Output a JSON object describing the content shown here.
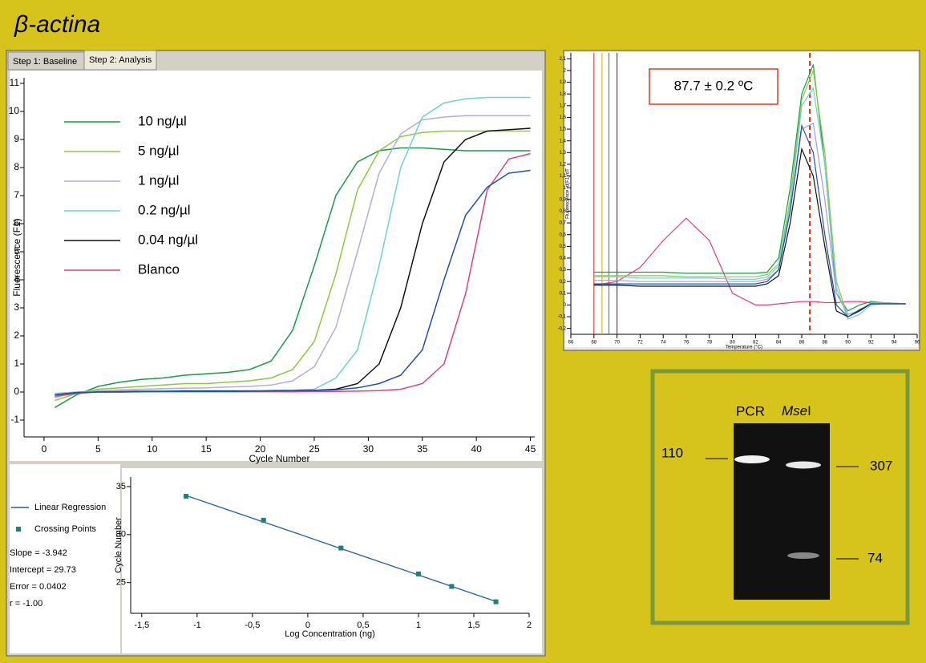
{
  "title": "β-actina",
  "tabs": [
    "Step 1: Baseline",
    "Step 2: Analysis"
  ],
  "gel": {
    "lanes": [
      {
        "label": "PCR"
      },
      {
        "italic": "Mse",
        "plain": "I"
      }
    ],
    "sizes": [
      110,
      307,
      74
    ]
  },
  "chart_data": [
    {
      "type": "line",
      "x_label": "Cycle Number",
      "y_label": "Fluorescence (F1)",
      "xlim": [
        -1.85,
        45.4
      ],
      "ylim": [
        -1.6,
        11.2
      ],
      "xticks": [
        0,
        5,
        10,
        15,
        20,
        25,
        30,
        35,
        40,
        45
      ],
      "yticks": [
        -1,
        0,
        1,
        2,
        3,
        4,
        5,
        6,
        7,
        8,
        9,
        10,
        11
      ],
      "grid": false,
      "legend": "upper left",
      "x": [
        1,
        3,
        5,
        7,
        9,
        11,
        13,
        15,
        17,
        19,
        21,
        23,
        25,
        27,
        29,
        31,
        33,
        35,
        37,
        39,
        41,
        43,
        45
      ],
      "series": [
        {
          "name": "10 ng/µl",
          "color": "#1a9a4a",
          "values": [
            -0.55,
            -0.1,
            0.2,
            0.35,
            0.45,
            0.5,
            0.6,
            0.65,
            0.7,
            0.8,
            1.1,
            2.2,
            4.5,
            7.0,
            8.2,
            8.6,
            8.7,
            8.7,
            8.65,
            8.6,
            8.6,
            8.6,
            8.6
          ]
        },
        {
          "name": "5 ng/µl",
          "color": "#8cc840",
          "values": [
            -0.3,
            -0.05,
            0.1,
            0.15,
            0.2,
            0.25,
            0.3,
            0.3,
            0.35,
            0.4,
            0.5,
            0.8,
            1.8,
            4.2,
            7.2,
            8.6,
            9.1,
            9.25,
            9.3,
            9.3,
            9.3,
            9.3,
            9.3
          ]
        },
        {
          "name": "1 ng/µl",
          "color": "#b4acdc",
          "values": [
            -0.2,
            0.0,
            0.05,
            0.08,
            0.1,
            0.12,
            0.14,
            0.15,
            0.18,
            0.2,
            0.25,
            0.4,
            0.9,
            2.3,
            5.0,
            7.8,
            9.2,
            9.7,
            9.8,
            9.85,
            9.85,
            9.85,
            9.85
          ]
        },
        {
          "name": "0.2 ng/µl",
          "color": "#6dd0d0",
          "values": [
            -0.05,
            0.0,
            0.02,
            0.03,
            0.04,
            0.05,
            0.05,
            0.05,
            0.05,
            0.05,
            0.06,
            0.07,
            0.1,
            0.5,
            1.5,
            4.5,
            8.0,
            9.8,
            10.3,
            10.45,
            10.5,
            10.5,
            10.5
          ]
        },
        {
          "name": "0.04 ng/µl",
          "color": "#111111",
          "values": [
            -0.1,
            -0.02,
            0.0,
            0.01,
            0.02,
            0.02,
            0.03,
            0.03,
            0.03,
            0.03,
            0.04,
            0.05,
            0.06,
            0.1,
            0.3,
            1.0,
            3.0,
            6.0,
            8.2,
            9.0,
            9.3,
            9.35,
            9.4
          ]
        },
        {
          "name": "Blanco",
          "color": "#e0407a",
          "values": [
            -0.15,
            -0.05,
            0.0,
            0.0,
            0.01,
            0.01,
            0.01,
            0.01,
            0.01,
            0.01,
            0.01,
            0.01,
            0.02,
            0.02,
            0.03,
            0.05,
            0.1,
            0.3,
            1.0,
            3.5,
            7.2,
            8.3,
            8.5
          ]
        },
        {
          "color": "#2050b0",
          "values": [
            -0.1,
            -0.02,
            0.0,
            0.0,
            0.01,
            0.02,
            0.02,
            0.02,
            0.02,
            0.03,
            0.04,
            0.05,
            0.06,
            0.08,
            0.15,
            0.3,
            0.6,
            1.5,
            4.0,
            6.3,
            7.3,
            7.8,
            7.9
          ]
        }
      ]
    },
    {
      "type": "line",
      "x_label": "Temperature (°C)",
      "y_label": "Fluorescence -d(F1)/dT",
      "annotation": "87.7 ± 0.2 ºC",
      "xlim": [
        66,
        96
      ],
      "ylim": [
        -0.25,
        2.15
      ],
      "xticks": [
        66,
        68,
        70,
        72,
        74,
        76,
        78,
        80,
        82,
        84,
        86,
        88,
        90,
        92,
        94,
        96
      ],
      "yticks": [
        {
          "value": -0.2,
          "label": "-0,2"
        },
        {
          "value": -0.1,
          "label": "-0,1"
        },
        0,
        {
          "value": 0.1,
          "label": "0,1"
        },
        {
          "value": 0.2,
          "label": "0,2"
        },
        {
          "value": 0.3,
          "label": "0,3"
        },
        {
          "value": 0.4,
          "label": "0,4"
        },
        {
          "value": 0.5,
          "label": "0,5"
        },
        {
          "value": 0.6,
          "label": "0,6"
        },
        {
          "value": 0.7,
          "label": "0,7"
        },
        {
          "value": 0.8,
          "label": "0,8"
        },
        {
          "value": 0.9,
          "label": "0,9"
        },
        1,
        {
          "value": 1.1,
          "label": "1,1"
        },
        {
          "value": 1.2,
          "label": "1,2"
        },
        {
          "value": 1.3,
          "label": "1,3"
        },
        {
          "value": 1.4,
          "label": "1,4"
        },
        {
          "value": 1.5,
          "label": "1,5"
        },
        {
          "value": 1.6,
          "label": "1,6"
        },
        {
          "value": 1.7,
          "label": "1,7"
        },
        {
          "value": 1.8,
          "label": "1,8"
        },
        {
          "value": 1.9,
          "label": "1,9"
        },
        2,
        {
          "value": 2.1,
          "label": "2,1"
        }
      ],
      "grid": false,
      "vlines": [
        {
          "x": 68,
          "color": "#e04040"
        },
        {
          "x": 68.7,
          "color": "#e0b030"
        },
        {
          "x": 69.3,
          "color": "#40a040"
        },
        {
          "x": 70,
          "color": "#4040c0"
        },
        {
          "x": 86.7,
          "color": "#e03020",
          "dashed": true
        }
      ],
      "x": [
        68,
        70,
        72,
        74,
        76,
        78,
        80,
        82,
        83,
        84,
        85,
        86,
        87,
        88,
        89,
        90,
        91,
        92,
        93,
        95
      ],
      "series": [
        {
          "color": "#e0407a",
          "values": [
            0.17,
            0.2,
            0.32,
            0.55,
            0.74,
            0.55,
            0.1,
            0.0,
            0.0,
            0.01,
            0.02,
            0.03,
            0.03,
            0.02,
            0.02,
            0.03,
            0.03,
            0.02,
            0.02,
            0.01
          ]
        },
        {
          "color": "#1a9a4a",
          "values": [
            0.28,
            0.28,
            0.28,
            0.28,
            0.27,
            0.27,
            0.27,
            0.27,
            0.28,
            0.4,
            1.0,
            1.8,
            2.05,
            1.2,
            0.1,
            -0.05,
            0.0,
            0.03,
            0.02,
            0.01
          ]
        },
        {
          "color": "#8cc840",
          "values": [
            0.25,
            0.25,
            0.25,
            0.25,
            0.24,
            0.24,
            0.24,
            0.24,
            0.26,
            0.35,
            0.9,
            1.75,
            2.0,
            1.3,
            0.2,
            -0.1,
            -0.05,
            0.02,
            0.02,
            0.01
          ]
        },
        {
          "color": "#a89ad8",
          "values": [
            0.21,
            0.21,
            0.2,
            0.2,
            0.2,
            0.2,
            0.2,
            0.2,
            0.22,
            0.3,
            0.8,
            1.5,
            1.55,
            0.9,
            0.1,
            -0.08,
            -0.05,
            0.02,
            0.02,
            0.01
          ]
        },
        {
          "color": "#6dd0d0",
          "values": [
            0.24,
            0.24,
            0.23,
            0.23,
            0.23,
            0.23,
            0.22,
            0.22,
            0.24,
            0.33,
            0.85,
            1.7,
            1.85,
            1.2,
            0.15,
            -0.12,
            -0.08,
            0.0,
            0.01,
            0.01
          ]
        },
        {
          "color": "#111111",
          "values": [
            0.17,
            0.17,
            0.16,
            0.16,
            0.16,
            0.16,
            0.16,
            0.16,
            0.18,
            0.25,
            0.7,
            1.33,
            1.1,
            0.5,
            -0.05,
            -0.1,
            -0.05,
            0.01,
            0.01,
            0.01
          ]
        },
        {
          "color": "#2050b0",
          "values": [
            0.18,
            0.18,
            0.18,
            0.18,
            0.18,
            0.18,
            0.18,
            0.18,
            0.2,
            0.3,
            0.8,
            1.53,
            1.3,
            0.6,
            0.0,
            -0.1,
            -0.04,
            0.01,
            0.01,
            0.01
          ]
        }
      ]
    },
    {
      "type": "scatter",
      "x_label": "Log Concentration (ng)",
      "y_label": "Cycle Number",
      "xlim": [
        -1.6,
        2.0
      ],
      "ylim": [
        21.8,
        36
      ],
      "xticks": [
        {
          "value": -1.5,
          "label": "-1,5"
        },
        -1,
        {
          "value": -0.5,
          "label": "-0,5"
        },
        0,
        {
          "value": 0.5,
          "label": "0,5"
        },
        1,
        {
          "value": 1.5,
          "label": "1,5"
        },
        2
      ],
      "yticks": [
        25,
        30,
        35
      ],
      "grid": false,
      "stats": [
        "Slope = -3.942",
        "Intercept = 29.73",
        "Error = 0.0402",
        "r = -1.00"
      ],
      "series": [
        {
          "name": "Linear Regression",
          "mode": "line",
          "color": "#1f5fa8",
          "x": [
            -1.1,
            -0.4,
            0.3,
            1,
            1.3,
            1.7
          ],
          "values": [
            34.07,
            31.31,
            28.55,
            25.79,
            24.61,
            23.03
          ]
        },
        {
          "name": "Crossing Points",
          "mode": "markers",
          "color": "#1a8080",
          "x": [
            -1.1,
            -0.4,
            0.3,
            1,
            1.3,
            1.7
          ],
          "values": [
            34.0,
            31.5,
            28.6,
            25.9,
            24.6,
            23.0
          ]
        }
      ]
    }
  ]
}
